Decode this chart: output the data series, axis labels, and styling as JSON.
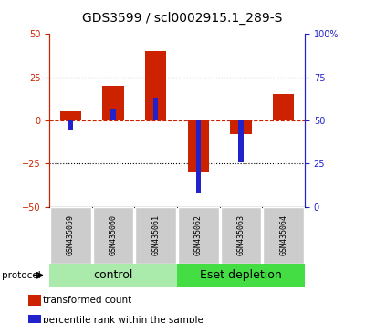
{
  "title": "GDS3599 / scl0002915.1_289-S",
  "samples": [
    "GSM435059",
    "GSM435060",
    "GSM435061",
    "GSM435062",
    "GSM435063",
    "GSM435064"
  ],
  "red_values": [
    5,
    20,
    40,
    -30,
    -8,
    15
  ],
  "blue_values_raw": [
    44,
    57,
    63,
    8,
    26,
    50
  ],
  "ylim_left": [
    -50,
    50
  ],
  "ylim_right": [
    0,
    100
  ],
  "yticks_left": [
    -50,
    -25,
    0,
    25,
    50
  ],
  "yticks_right": [
    0,
    25,
    50,
    75,
    100
  ],
  "yticklabels_right": [
    "0",
    "25",
    "50",
    "75",
    "100%"
  ],
  "red_color": "#cc2200",
  "blue_color": "#2222cc",
  "dotted_color": "#000000",
  "bg_color": "#ffffff",
  "plot_bg": "#ffffff",
  "group1_label": "control",
  "group2_label": "Eset depletion",
  "group1_color": "#aaeaaa",
  "group2_color": "#44dd44",
  "protocol_label": "protocol",
  "legend1_label": "transformed count",
  "legend2_label": "percentile rank within the sample",
  "red_bar_width": 0.5,
  "blue_bar_width": 0.12,
  "tick_label_fontsize": 7,
  "title_fontsize": 10,
  "group_fontsize": 9,
  "sample_fontsize": 6,
  "legend_fontsize": 7.5
}
